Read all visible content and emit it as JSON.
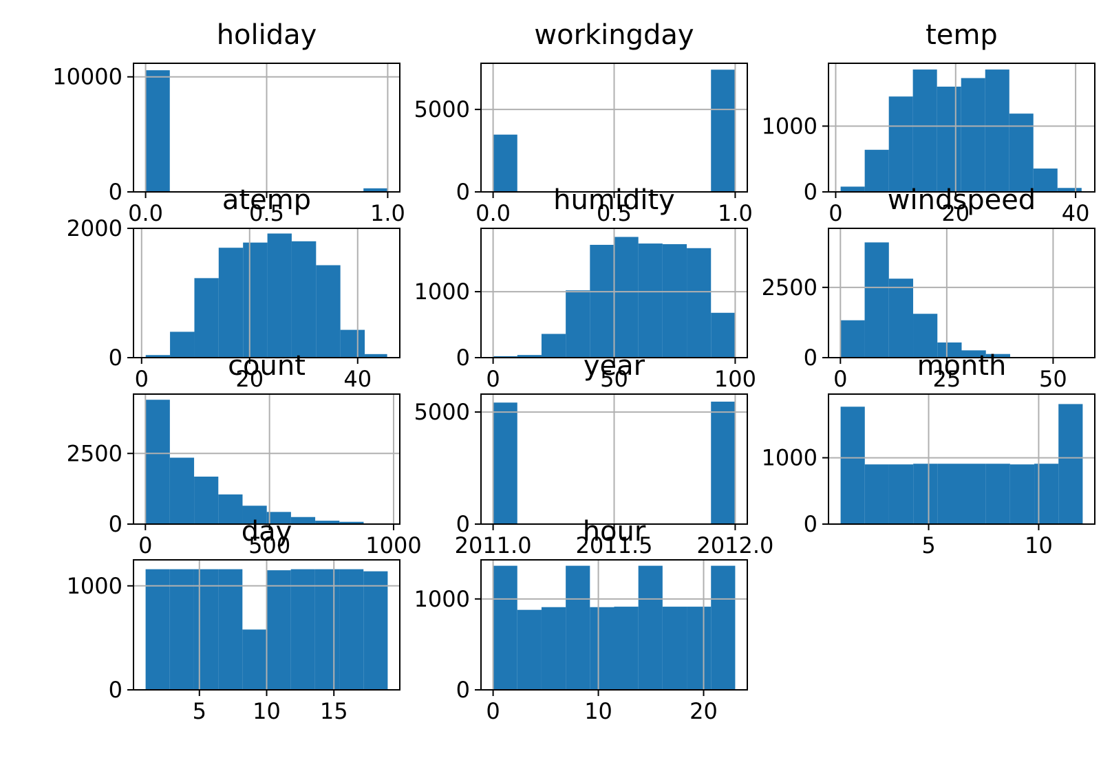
{
  "chart_data": [
    {
      "type": "bar",
      "title": "holiday",
      "xlim": [
        -0.05,
        1.05
      ],
      "ylim": [
        0,
        11180
      ],
      "xticks": [
        0.0,
        0.5,
        1.0
      ],
      "xtick_labels": [
        "0.0",
        "0.5",
        "1.0"
      ],
      "yticks": [
        0,
        10000
      ],
      "ytick_labels": [
        "0",
        "10000"
      ],
      "bins": [
        [
          0.0,
          0.1
        ],
        [
          0.1,
          0.2
        ],
        [
          0.2,
          0.3
        ],
        [
          0.3,
          0.4
        ],
        [
          0.4,
          0.5
        ],
        [
          0.5,
          0.6
        ],
        [
          0.6,
          0.7
        ],
        [
          0.7,
          0.8
        ],
        [
          0.8,
          0.9
        ],
        [
          0.9,
          1.0
        ]
      ],
      "values": [
        10575,
        0,
        0,
        0,
        0,
        0,
        0,
        0,
        0,
        311
      ],
      "grid": true
    },
    {
      "type": "bar",
      "title": "workingday",
      "xlim": [
        -0.05,
        1.05
      ],
      "ylim": [
        0,
        7800
      ],
      "xticks": [
        0.0,
        0.5,
        1.0
      ],
      "xtick_labels": [
        "0.0",
        "0.5",
        "1.0"
      ],
      "yticks": [
        0,
        5000
      ],
      "ytick_labels": [
        "0",
        "5000"
      ],
      "bins": [
        [
          0.0,
          0.1
        ],
        [
          0.1,
          0.2
        ],
        [
          0.2,
          0.3
        ],
        [
          0.3,
          0.4
        ],
        [
          0.4,
          0.5
        ],
        [
          0.5,
          0.6
        ],
        [
          0.6,
          0.7
        ],
        [
          0.7,
          0.8
        ],
        [
          0.8,
          0.9
        ],
        [
          0.9,
          1.0
        ]
      ],
      "values": [
        3474,
        0,
        0,
        0,
        0,
        0,
        0,
        0,
        0,
        7412
      ],
      "grid": true
    },
    {
      "type": "bar",
      "title": "temp",
      "xlim": [
        -1.2,
        43.2
      ],
      "ylim": [
        0,
        1955
      ],
      "xticks": [
        0,
        20,
        40
      ],
      "xtick_labels": [
        "0",
        "20",
        "40"
      ],
      "yticks": [
        0,
        1000
      ],
      "ytick_labels": [
        "0",
        "1000"
      ],
      "bins": [
        [
          0.82,
          4.84
        ],
        [
          4.84,
          8.86
        ],
        [
          8.86,
          12.87
        ],
        [
          12.87,
          16.89
        ],
        [
          16.89,
          20.91
        ],
        [
          20.91,
          24.93
        ],
        [
          24.93,
          28.95
        ],
        [
          28.95,
          32.96
        ],
        [
          32.96,
          36.98
        ],
        [
          36.98,
          41.0
        ]
      ],
      "values": [
        80,
        640,
        1450,
        1860,
        1600,
        1730,
        1860,
        1190,
        355,
        60
      ],
      "grid": true
    },
    {
      "type": "bar",
      "title": "atemp",
      "xlim": [
        -1.5,
        47.8
      ],
      "ylim": [
        0,
        2000
      ],
      "xticks": [
        0,
        20,
        40
      ],
      "xtick_labels": [
        "0",
        "20",
        "40"
      ],
      "yticks": [
        0,
        2000
      ],
      "ytick_labels": [
        "0",
        "2000"
      ],
      "bins": [
        [
          0.76,
          5.26
        ],
        [
          5.26,
          9.77
        ],
        [
          9.77,
          14.27
        ],
        [
          14.27,
          18.78
        ],
        [
          18.78,
          23.29
        ],
        [
          23.29,
          27.79
        ],
        [
          27.79,
          32.3
        ],
        [
          32.3,
          36.8
        ],
        [
          36.8,
          41.31
        ],
        [
          41.31,
          45.46
        ]
      ],
      "values": [
        40,
        400,
        1230,
        1700,
        1780,
        1920,
        1800,
        1430,
        430,
        55
      ],
      "grid": true
    },
    {
      "type": "bar",
      "title": "humidity",
      "xlim": [
        -5,
        105
      ],
      "ylim": [
        0,
        1960
      ],
      "xticks": [
        0,
        50,
        100
      ],
      "xtick_labels": [
        "0",
        "50",
        "100"
      ],
      "yticks": [
        0,
        1000
      ],
      "ytick_labels": [
        "0",
        "1000"
      ],
      "bins": [
        [
          0,
          10
        ],
        [
          10,
          20
        ],
        [
          20,
          30
        ],
        [
          30,
          40
        ],
        [
          40,
          50
        ],
        [
          50,
          60
        ],
        [
          60,
          70
        ],
        [
          70,
          80
        ],
        [
          80,
          90
        ],
        [
          90,
          100
        ]
      ],
      "values": [
        22,
        40,
        360,
        1020,
        1710,
        1830,
        1730,
        1720,
        1660,
        680
      ],
      "grid": true
    },
    {
      "type": "bar",
      "title": "windspeed",
      "xlim": [
        -2.8,
        59.8
      ],
      "ylim": [
        0,
        4600
      ],
      "xticks": [
        0,
        25,
        50
      ],
      "xtick_labels": [
        "0",
        "25",
        "50"
      ],
      "yticks": [
        0,
        2500
      ],
      "ytick_labels": [
        "0",
        "2500"
      ],
      "bins": [
        [
          0,
          5.7
        ],
        [
          5.7,
          11.4
        ],
        [
          11.4,
          17.1
        ],
        [
          17.1,
          22.8
        ],
        [
          22.8,
          28.5
        ],
        [
          28.5,
          34.2
        ],
        [
          34.2,
          39.9
        ],
        [
          39.9,
          45.6
        ],
        [
          45.6,
          51.3
        ],
        [
          51.3,
          57.0
        ]
      ],
      "values": [
        1330,
        4100,
        2810,
        1560,
        540,
        260,
        130,
        10,
        5,
        2
      ],
      "grid": true
    },
    {
      "type": "bar",
      "title": "count",
      "xlim": [
        -48,
        1025
      ],
      "ylim": [
        0,
        4600
      ],
      "xticks": [
        0,
        500,
        1000
      ],
      "xtick_labels": [
        "0",
        "500",
        "1000"
      ],
      "yticks": [
        0,
        2500
      ],
      "ytick_labels": [
        "0",
        "2500"
      ],
      "bins": [
        [
          1,
          98.6
        ],
        [
          98.6,
          196.2
        ],
        [
          196.2,
          293.8
        ],
        [
          293.8,
          391.4
        ],
        [
          391.4,
          489
        ],
        [
          489,
          586.6
        ],
        [
          586.6,
          684.2
        ],
        [
          684.2,
          781.8
        ],
        [
          781.8,
          879.4
        ],
        [
          879.4,
          977
        ]
      ],
      "values": [
        4400,
        2350,
        1680,
        1050,
        650,
        430,
        250,
        120,
        80,
        10
      ],
      "grid": true
    },
    {
      "type": "bar",
      "title": "year",
      "xlim": [
        2010.95,
        2012.05
      ],
      "ylim": [
        0,
        5800
      ],
      "xticks": [
        2011.0,
        2011.5,
        2012.0
      ],
      "xtick_labels": [
        "2011.0",
        "2011.5",
        "2012.0"
      ],
      "yticks": [
        0,
        5000
      ],
      "ytick_labels": [
        "0",
        "5000"
      ],
      "bins": [
        [
          2011.0,
          2011.1
        ],
        [
          2011.1,
          2011.2
        ],
        [
          2011.2,
          2011.3
        ],
        [
          2011.3,
          2011.4
        ],
        [
          2011.4,
          2011.5
        ],
        [
          2011.5,
          2011.6
        ],
        [
          2011.6,
          2011.7
        ],
        [
          2011.7,
          2011.8
        ],
        [
          2011.8,
          2011.9
        ],
        [
          2011.9,
          2012.0
        ]
      ],
      "values": [
        5422,
        0,
        0,
        0,
        0,
        0,
        0,
        0,
        0,
        5464
      ],
      "grid": true
    },
    {
      "type": "bar",
      "title": "month",
      "xlim": [
        0.45,
        12.55
      ],
      "ylim": [
        0,
        1960
      ],
      "xticks": [
        5,
        10
      ],
      "xtick_labels": [
        "5",
        "10"
      ],
      "yticks": [
        0,
        1000
      ],
      "ytick_labels": [
        "0",
        "1000"
      ],
      "bins": [
        [
          1.0,
          2.1
        ],
        [
          2.1,
          3.2
        ],
        [
          3.2,
          4.3
        ],
        [
          4.3,
          5.4
        ],
        [
          5.4,
          6.5
        ],
        [
          6.5,
          7.6
        ],
        [
          7.6,
          8.7
        ],
        [
          8.7,
          9.8
        ],
        [
          9.8,
          10.9
        ],
        [
          10.9,
          12.0
        ]
      ],
      "values": [
        1770,
        900,
        900,
        910,
        910,
        910,
        910,
        900,
        910,
        1810
      ],
      "grid": true
    },
    {
      "type": "bar",
      "title": "day",
      "xlim": [
        0.1,
        19.9
      ],
      "ylim": [
        0,
        1250
      ],
      "xticks": [
        5,
        10,
        15
      ],
      "xtick_labels": [
        "5",
        "10",
        "15"
      ],
      "yticks": [
        0,
        1000
      ],
      "ytick_labels": [
        "0",
        "1000"
      ],
      "bins": [
        [
          1.0,
          2.8
        ],
        [
          2.8,
          4.6
        ],
        [
          4.6,
          6.4
        ],
        [
          6.4,
          8.2
        ],
        [
          8.2,
          10.0
        ],
        [
          10.0,
          11.8
        ],
        [
          11.8,
          13.6
        ],
        [
          13.6,
          15.4
        ],
        [
          15.4,
          17.2
        ],
        [
          17.2,
          19.0
        ]
      ],
      "values": [
        1160,
        1160,
        1160,
        1160,
        580,
        1150,
        1160,
        1160,
        1160,
        1140
      ],
      "grid": true
    },
    {
      "type": "bar",
      "title": "hour",
      "xlim": [
        -1.15,
        24.15
      ],
      "ylim": [
        0,
        1430
      ],
      "xticks": [
        0,
        10,
        20
      ],
      "xtick_labels": [
        "0",
        "10",
        "20"
      ],
      "yticks": [
        0,
        1000
      ],
      "ytick_labels": [
        "0",
        "1000"
      ],
      "bins": [
        [
          0,
          2.3
        ],
        [
          2.3,
          4.6
        ],
        [
          4.6,
          6.9
        ],
        [
          6.9,
          9.2
        ],
        [
          9.2,
          11.5
        ],
        [
          11.5,
          13.8
        ],
        [
          13.8,
          16.1
        ],
        [
          16.1,
          18.4
        ],
        [
          18.4,
          20.7
        ],
        [
          20.7,
          23.0
        ]
      ],
      "values": [
        1365,
        880,
        910,
        1365,
        910,
        915,
        1365,
        915,
        915,
        1365
      ],
      "grid": true
    }
  ],
  "colors": {
    "bar": "#1f77b4",
    "grid": "#b0b0b0",
    "axis": "#000000"
  }
}
